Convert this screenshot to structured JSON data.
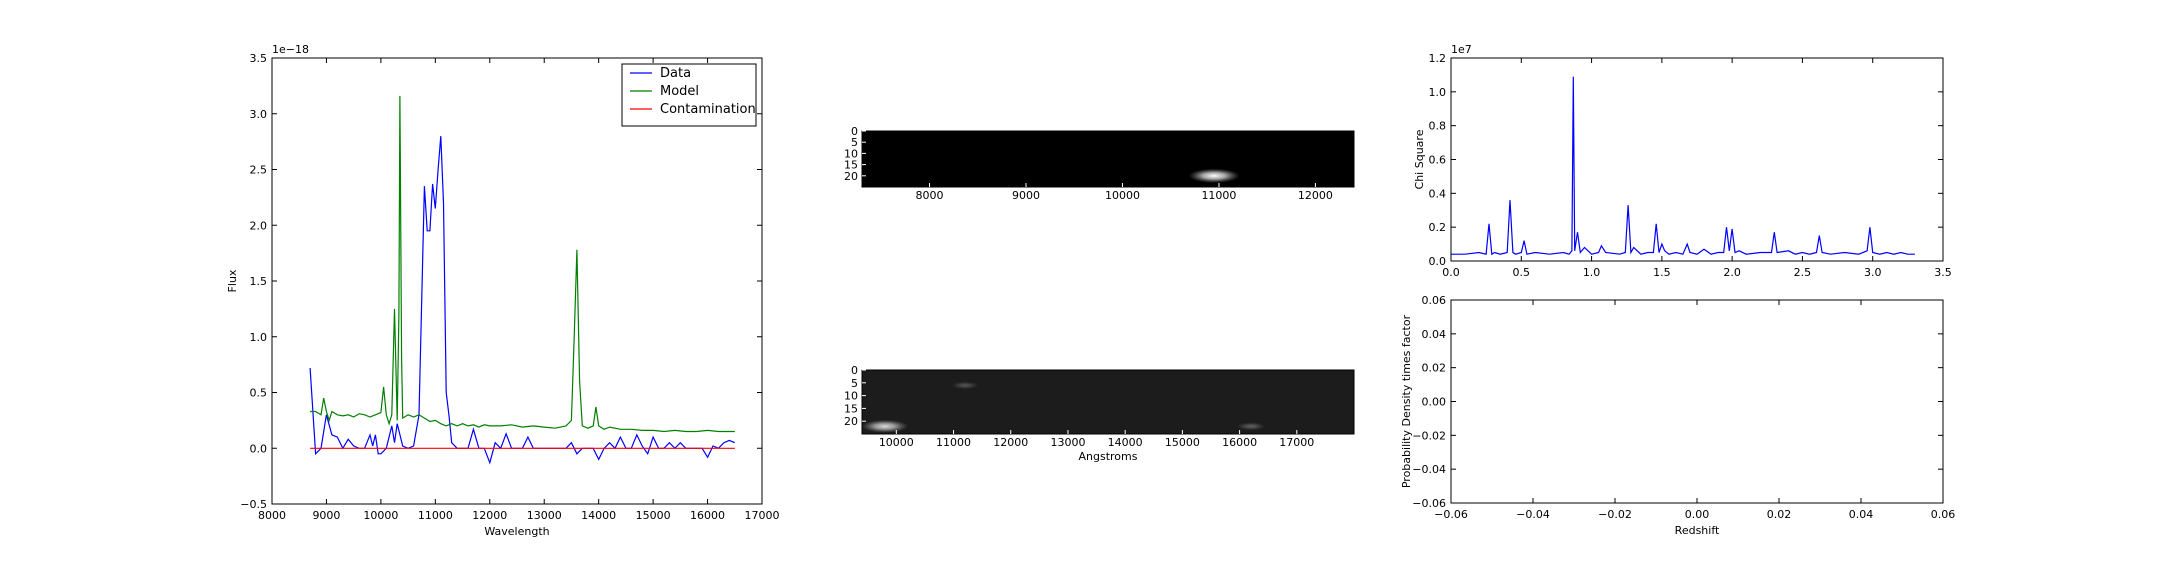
{
  "chart_data": [
    {
      "id": "spectrum",
      "type": "line",
      "xlabel": "Wavelength",
      "ylabel": "Flux",
      "offset_text": "1e−18",
      "xlim": [
        8000,
        17000
      ],
      "ylim": [
        -0.5,
        3.5
      ],
      "xticks": [
        8000,
        9000,
        10000,
        11000,
        12000,
        13000,
        14000,
        15000,
        16000,
        17000
      ],
      "yticks": [
        -0.5,
        0.0,
        0.5,
        1.0,
        1.5,
        2.0,
        2.5,
        3.0,
        3.5
      ],
      "legend": {
        "position": "top-right"
      },
      "series": [
        {
          "name": "Data",
          "color": "#0000ff",
          "x": [
            8700,
            8800,
            8900,
            9000,
            9100,
            9200,
            9300,
            9400,
            9500,
            9600,
            9700,
            9800,
            9850,
            9900,
            9950,
            10000,
            10100,
            10200,
            10250,
            10300,
            10400,
            10500,
            10600,
            10700,
            10800,
            10850,
            10900,
            10950,
            11000,
            11050,
            11100,
            11150,
            11200,
            11250,
            11300,
            11400,
            11500,
            11600,
            11700,
            11800,
            11900,
            12000,
            12100,
            12200,
            12300,
            12400,
            12500,
            12600,
            12700,
            12800,
            12900,
            13000,
            13100,
            13200,
            13300,
            13400,
            13500,
            13600,
            13700,
            13800,
            13900,
            14000,
            14100,
            14200,
            14300,
            14400,
            14500,
            14600,
            14700,
            14800,
            14900,
            15000,
            15100,
            15200,
            15300,
            15400,
            15500,
            15600,
            15700,
            15800,
            15900,
            16000,
            16100,
            16200,
            16300,
            16400,
            16500
          ],
          "y": [
            0.72,
            -0.05,
            0.0,
            0.3,
            0.12,
            0.1,
            0.0,
            0.08,
            0.02,
            0.0,
            0.0,
            0.12,
            0.02,
            0.12,
            -0.05,
            -0.05,
            0.0,
            0.2,
            0.05,
            0.22,
            0.02,
            0.0,
            0.02,
            0.3,
            2.35,
            1.95,
            1.95,
            2.37,
            2.15,
            2.5,
            2.8,
            2.2,
            0.5,
            0.3,
            0.05,
            0.0,
            0.0,
            0.0,
            0.17,
            0.0,
            0.0,
            -0.13,
            0.05,
            0.0,
            0.13,
            0.0,
            0.0,
            0.0,
            0.1,
            0.0,
            0.0,
            0.0,
            0.0,
            0.0,
            0.0,
            0.0,
            0.05,
            -0.05,
            0.0,
            0.0,
            0.0,
            -0.1,
            0.0,
            0.05,
            0.0,
            0.1,
            0.0,
            0.0,
            0.12,
            0.02,
            -0.05,
            0.1,
            0.0,
            0.0,
            0.05,
            0.0,
            0.05,
            0.0,
            0.0,
            0.0,
            0.0,
            -0.08,
            0.02,
            0.0,
            0.05,
            0.07,
            0.05
          ]
        },
        {
          "name": "Model",
          "color": "#008000",
          "x": [
            8700,
            8800,
            8900,
            8950,
            9000,
            9050,
            9100,
            9200,
            9300,
            9400,
            9500,
            9600,
            9700,
            9800,
            9900,
            10000,
            10050,
            10100,
            10150,
            10200,
            10250,
            10300,
            10330,
            10350,
            10380,
            10400,
            10500,
            10600,
            10700,
            10800,
            10900,
            11000,
            11100,
            11200,
            11300,
            11400,
            11500,
            11600,
            11700,
            11800,
            11900,
            12000,
            12200,
            12400,
            12600,
            12800,
            13000,
            13200,
            13400,
            13500,
            13550,
            13600,
            13650,
            13700,
            13800,
            13900,
            13950,
            14000,
            14100,
            14200,
            14400,
            14600,
            14800,
            15000,
            15200,
            15400,
            15600,
            15800,
            16000,
            16200,
            16400,
            16500
          ],
          "y": [
            0.33,
            0.33,
            0.3,
            0.45,
            0.33,
            0.25,
            0.33,
            0.3,
            0.29,
            0.3,
            0.28,
            0.31,
            0.3,
            0.28,
            0.3,
            0.32,
            0.55,
            0.3,
            0.22,
            0.3,
            1.25,
            0.25,
            1.2,
            3.16,
            0.8,
            0.27,
            0.3,
            0.28,
            0.3,
            0.27,
            0.24,
            0.25,
            0.22,
            0.2,
            0.22,
            0.2,
            0.22,
            0.2,
            0.21,
            0.19,
            0.21,
            0.2,
            0.2,
            0.21,
            0.19,
            0.2,
            0.19,
            0.18,
            0.2,
            0.25,
            1.0,
            1.78,
            0.6,
            0.2,
            0.18,
            0.2,
            0.37,
            0.2,
            0.17,
            0.19,
            0.17,
            0.17,
            0.16,
            0.16,
            0.15,
            0.16,
            0.15,
            0.15,
            0.16,
            0.15,
            0.15,
            0.15
          ]
        },
        {
          "name": "Contamination",
          "color": "#ff0000",
          "x": [
            8700,
            16500
          ],
          "y": [
            0.0,
            0.0
          ]
        }
      ]
    },
    {
      "id": "image-2d-top",
      "type": "heatmap",
      "xlabel": "",
      "xlim": [
        7300,
        12400
      ],
      "xticks": [
        8000,
        9000,
        10000,
        11000,
        12000
      ],
      "ylim": [
        0,
        25
      ],
      "yticks": [
        0,
        5,
        10,
        15,
        20
      ],
      "background": "#000000",
      "spots": [
        {
          "x": 10950,
          "y": 20,
          "intensity": 1.0
        }
      ]
    },
    {
      "id": "image-2d-bottom",
      "type": "heatmap",
      "xlabel": "Angstroms",
      "xlim": [
        9400,
        18000
      ],
      "xticks": [
        10000,
        11000,
        12000,
        13000,
        14000,
        15000,
        16000,
        17000
      ],
      "ylim": [
        0,
        25
      ],
      "yticks": [
        0,
        5,
        10,
        15,
        20
      ],
      "background": "#1c1c1c",
      "spots": [
        {
          "x": 9800,
          "y": 22,
          "intensity": 0.85
        },
        {
          "x": 11200,
          "y": 6,
          "intensity": 0.25
        },
        {
          "x": 16200,
          "y": 22,
          "intensity": 0.3
        }
      ]
    },
    {
      "id": "chisquare",
      "type": "line",
      "xlabel": "",
      "ylabel": "Chi Square",
      "offset_text": "1e7",
      "xlim": [
        0.0,
        3.5
      ],
      "ylim": [
        0.0,
        1.2
      ],
      "xticks": [
        0.0,
        0.5,
        1.0,
        1.5,
        2.0,
        2.5,
        3.0,
        3.5
      ],
      "yticks": [
        0.0,
        0.2,
        0.4,
        0.6,
        0.8,
        1.0,
        1.2
      ],
      "series": [
        {
          "name": "",
          "color": "#0000ff",
          "x": [
            0.0,
            0.1,
            0.2,
            0.25,
            0.27,
            0.29,
            0.31,
            0.35,
            0.4,
            0.42,
            0.44,
            0.46,
            0.5,
            0.52,
            0.54,
            0.6,
            0.7,
            0.8,
            0.84,
            0.86,
            0.87,
            0.88,
            0.9,
            0.92,
            0.95,
            1.0,
            1.05,
            1.07,
            1.1,
            1.2,
            1.24,
            1.26,
            1.28,
            1.3,
            1.35,
            1.4,
            1.44,
            1.46,
            1.48,
            1.5,
            1.52,
            1.55,
            1.6,
            1.65,
            1.68,
            1.7,
            1.75,
            1.8,
            1.85,
            1.9,
            1.94,
            1.96,
            1.98,
            2.0,
            2.02,
            2.05,
            2.1,
            2.2,
            2.28,
            2.3,
            2.32,
            2.4,
            2.45,
            2.5,
            2.55,
            2.6,
            2.62,
            2.64,
            2.7,
            2.8,
            2.9,
            2.96,
            2.98,
            3.0,
            3.05,
            3.1,
            3.15,
            3.2,
            3.25,
            3.3
          ],
          "y": [
            0.04,
            0.04,
            0.05,
            0.04,
            0.22,
            0.04,
            0.05,
            0.04,
            0.05,
            0.36,
            0.05,
            0.04,
            0.05,
            0.12,
            0.04,
            0.05,
            0.04,
            0.05,
            0.04,
            0.06,
            1.09,
            0.06,
            0.17,
            0.05,
            0.08,
            0.04,
            0.05,
            0.09,
            0.05,
            0.04,
            0.05,
            0.33,
            0.05,
            0.08,
            0.04,
            0.05,
            0.05,
            0.22,
            0.05,
            0.1,
            0.06,
            0.04,
            0.05,
            0.04,
            0.1,
            0.05,
            0.04,
            0.07,
            0.04,
            0.05,
            0.05,
            0.2,
            0.06,
            0.19,
            0.05,
            0.06,
            0.04,
            0.05,
            0.05,
            0.17,
            0.05,
            0.06,
            0.04,
            0.05,
            0.04,
            0.05,
            0.15,
            0.05,
            0.04,
            0.05,
            0.04,
            0.06,
            0.2,
            0.05,
            0.04,
            0.05,
            0.04,
            0.05,
            0.04,
            0.04
          ]
        }
      ]
    },
    {
      "id": "probability",
      "type": "line",
      "xlabel": "Redshift",
      "ylabel": "Probability Density times factor",
      "xlim": [
        -0.06,
        0.06
      ],
      "ylim": [
        -0.06,
        0.06
      ],
      "xticks": [
        -0.06,
        -0.04,
        -0.02,
        0.0,
        0.02,
        0.04,
        0.06
      ],
      "yticks": [
        -0.06,
        -0.04,
        -0.02,
        0.0,
        0.02,
        0.04,
        0.06
      ],
      "series": []
    }
  ]
}
